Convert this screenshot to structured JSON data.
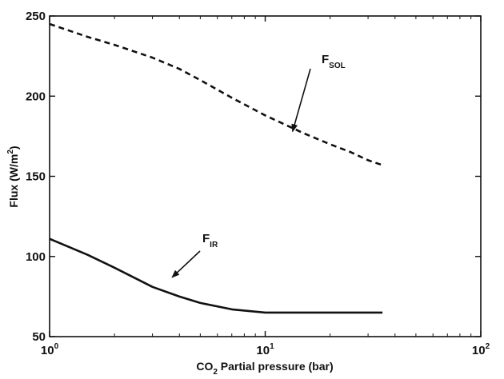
{
  "chart_data": {
    "type": "line",
    "title": "",
    "xlabel": {
      "main": "CO",
      "sub": "2",
      "rest": " Partial pressure (bar)"
    },
    "ylabel": {
      "main": "Flux (W/m",
      "sup": "2",
      "rest": ")"
    },
    "xscale": "log",
    "xlim": [
      1,
      100
    ],
    "ylim": [
      50,
      250
    ],
    "grid": false,
    "legend": "none",
    "x_ticks": [
      {
        "value": 1,
        "base": "10",
        "exp": "0"
      },
      {
        "value": 10,
        "base": "10",
        "exp": "1"
      },
      {
        "value": 100,
        "base": "10",
        "exp": "2"
      }
    ],
    "y_ticks": [
      {
        "value": 50,
        "label": "50"
      },
      {
        "value": 100,
        "label": "100"
      },
      {
        "value": 150,
        "label": "150"
      },
      {
        "value": 200,
        "label": "200"
      },
      {
        "value": 250,
        "label": "250"
      }
    ],
    "series": [
      {
        "name": "SOL",
        "style": "dashed",
        "x": [
          1,
          1.5,
          2,
          3,
          4,
          5,
          7,
          10,
          15,
          20,
          25,
          30,
          35
        ],
        "y": [
          245,
          237,
          232,
          224,
          217,
          210,
          199,
          188,
          177,
          170,
          165,
          160,
          157
        ]
      },
      {
        "name": "IR",
        "style": "solid",
        "x": [
          1,
          1.5,
          2,
          3,
          4,
          5,
          7,
          10,
          15,
          20,
          25,
          30,
          35
        ],
        "y": [
          111,
          101,
          93,
          81,
          75,
          71,
          67,
          65,
          65,
          65,
          65,
          65,
          65
        ]
      }
    ],
    "annotations": [
      {
        "main": "F",
        "sub": "SOL",
        "arrow_to_x": 13.4,
        "arrow_to_y": 178
      },
      {
        "main": "F",
        "sub": "IR",
        "arrow_to_x": 3.7,
        "arrow_to_y": 87
      }
    ]
  }
}
